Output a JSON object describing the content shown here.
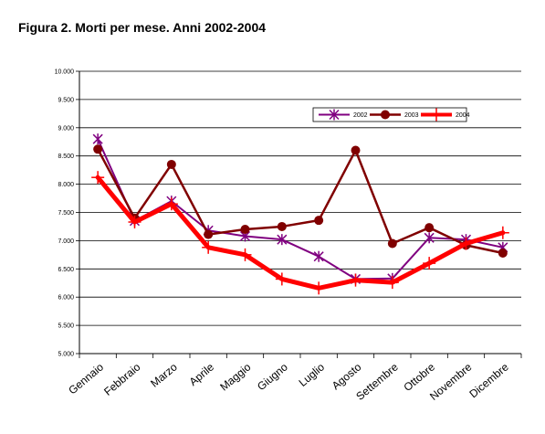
{
  "figure": {
    "title": "Figura  2. Morti per mese. Anni 2002-2004"
  },
  "chart_data": {
    "type": "line",
    "title": "Figura  2. Morti per mese. Anni 2002-2004",
    "xlabel": "",
    "ylabel": "",
    "ylim": [
      5000,
      10000
    ],
    "y_ticks": [
      5000,
      5500,
      6000,
      6500,
      7000,
      7500,
      8000,
      8500,
      9000,
      9500,
      10000
    ],
    "y_tick_labels": [
      "5.000",
      "5.500",
      "6.000",
      "6.500",
      "7.000",
      "7.500",
      "8.000",
      "8.500",
      "9.000",
      "9.500",
      "10.000"
    ],
    "grid": "horizontal",
    "legend_position": "top-right",
    "categories": [
      "Gennaio",
      "Febbraio",
      "Marzo",
      "Aprile",
      "Maggio",
      "Giugno",
      "Luglio",
      "Agosto",
      "Settembre",
      "Ottobre",
      "Novembre",
      "Dicembre"
    ],
    "series": [
      {
        "name": "2002",
        "color": "#800080",
        "marker": "asterisk",
        "width": 2,
        "values": [
          8800,
          7350,
          7700,
          7180,
          7080,
          7020,
          6720,
          6320,
          6330,
          7050,
          7020,
          6880
        ]
      },
      {
        "name": "2003",
        "color": "#800000",
        "marker": "circle",
        "width": 2.5,
        "values": [
          8620,
          7400,
          8350,
          7110,
          7200,
          7250,
          7360,
          8600,
          6950,
          7230,
          6920,
          6780
        ]
      },
      {
        "name": "2004",
        "color": "#ff0000",
        "marker": "cross",
        "width": 5,
        "values": [
          8120,
          7330,
          7650,
          6880,
          6750,
          6320,
          6160,
          6300,
          6260,
          6600,
          6950,
          7140
        ]
      }
    ]
  }
}
